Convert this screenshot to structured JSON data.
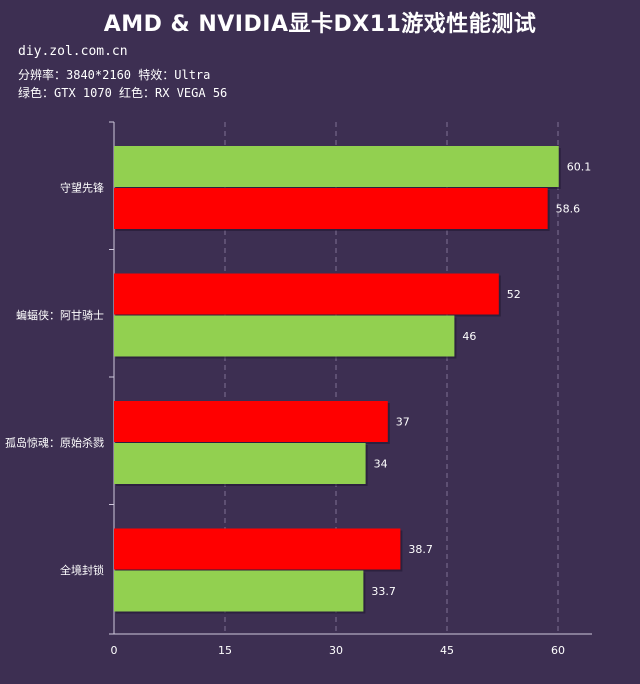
{
  "header": {
    "title": "AMD & NVIDIA显卡DX11游戏性能测试",
    "site": "diy.zol.com.cn",
    "settings": "分辨率：3840*2160  特效：Ultra",
    "legend_note": "绿色：GTX 1070 红色：RX VEGA 56"
  },
  "colors": {
    "green": "#92d050",
    "red": "#ff0000",
    "background": "#3d2f52"
  },
  "chart_data": {
    "type": "bar",
    "orientation": "horizontal",
    "title": "AMD & NVIDIA显卡DX11游戏性能测试",
    "xlim": [
      0,
      60
    ],
    "xticks": [
      0,
      15,
      30,
      45,
      60
    ],
    "grid": "vertical-dashed",
    "categories": [
      "守望先锋",
      "蝙蝠侠：阿甘骑士",
      "孤岛惊魂：原始杀戮",
      "全境封锁"
    ],
    "groups": [
      {
        "category": "守望先锋",
        "bars": [
          {
            "series": "GTX 1070",
            "color": "green",
            "value": 60.1,
            "label": "60.1"
          },
          {
            "series": "RX VEGA 56",
            "color": "red",
            "value": 58.6,
            "label": "58.6"
          }
        ]
      },
      {
        "category": "蝙蝠侠：阿甘骑士",
        "bars": [
          {
            "series": "RX VEGA 56",
            "color": "red",
            "value": 52,
            "label": "52"
          },
          {
            "series": "GTX 1070",
            "color": "green",
            "value": 46,
            "label": "46"
          }
        ]
      },
      {
        "category": "孤岛惊魂：原始杀戮",
        "bars": [
          {
            "series": "RX VEGA 56",
            "color": "red",
            "value": 37,
            "label": "37"
          },
          {
            "series": "GTX 1070",
            "color": "green",
            "value": 34,
            "label": "34"
          }
        ]
      },
      {
        "category": "全境封锁",
        "bars": [
          {
            "series": "RX VEGA 56",
            "color": "red",
            "value": 38.7,
            "label": "38.7"
          },
          {
            "series": "GTX 1070",
            "color": "green",
            "value": 33.7,
            "label": "33.7"
          }
        ]
      }
    ]
  }
}
